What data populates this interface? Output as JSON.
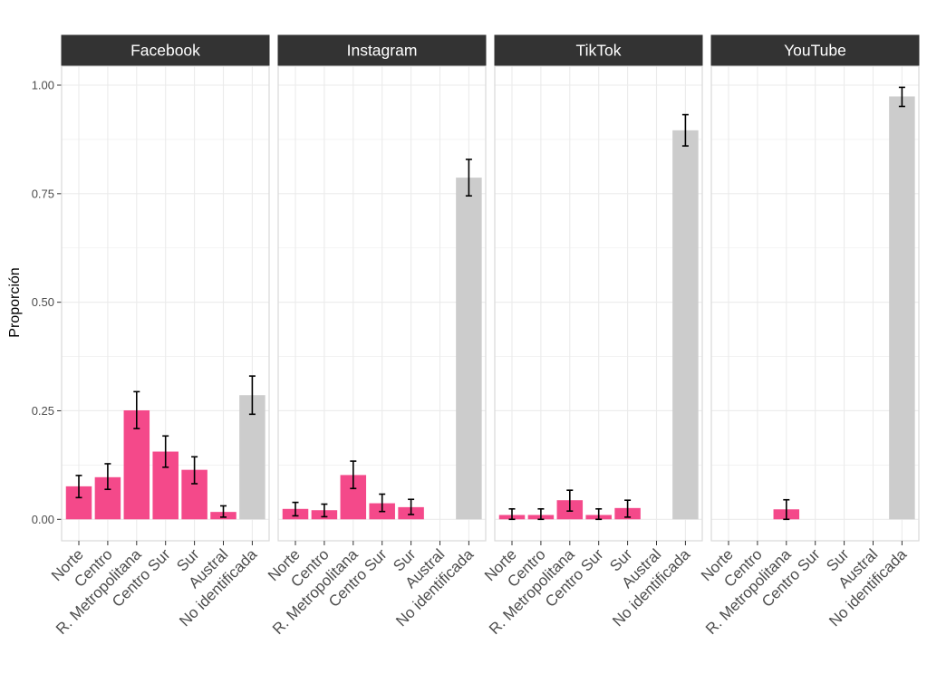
{
  "chart_data": {
    "type": "bar",
    "title": "",
    "xlabel": "",
    "ylabel": "Proporción",
    "ylim": [
      -0.05,
      1.05
    ],
    "yticks": [
      0.0,
      0.25,
      0.5,
      0.75,
      1.0
    ],
    "ytick_labels": [
      "0.00",
      "0.25",
      "0.50",
      "0.75",
      "1.00"
    ],
    "grid": true,
    "legend": "none",
    "colors": {
      "identified": "#F4498A",
      "unidentified": "#CCCCCC",
      "strip_bg": "#333333",
      "grid": "#EBEBEB",
      "panel_border": "#D9D9D9"
    },
    "categories": [
      "Norte",
      "Centro",
      "R. Metropolitana",
      "Centro Sur",
      "Sur",
      "Austral",
      "No identificada"
    ],
    "facets": [
      {
        "name": "Facebook",
        "values": [
          0.076,
          0.097,
          0.251,
          0.156,
          0.114,
          0.017,
          0.286
        ],
        "err_low": [
          0.05,
          0.069,
          0.209,
          0.12,
          0.082,
          0.005,
          0.242
        ],
        "err_high": [
          0.101,
          0.128,
          0.294,
          0.192,
          0.144,
          0.031,
          0.33
        ]
      },
      {
        "name": "Instagram",
        "values": [
          0.024,
          0.021,
          0.102,
          0.037,
          0.028,
          null,
          0.787
        ],
        "err_low": [
          0.008,
          0.006,
          0.071,
          0.018,
          0.011,
          null,
          0.745
        ],
        "err_high": [
          0.039,
          0.035,
          0.134,
          0.058,
          0.046,
          null,
          0.829
        ]
      },
      {
        "name": "TikTok",
        "values": [
          0.01,
          0.01,
          0.044,
          0.01,
          0.026,
          null,
          0.896
        ],
        "err_low": [
          0.0,
          0.0,
          0.019,
          0.0,
          0.005,
          null,
          0.86
        ],
        "err_high": [
          0.024,
          0.024,
          0.067,
          0.024,
          0.044,
          null,
          0.932
        ]
      },
      {
        "name": "YouTube",
        "values": [
          null,
          null,
          0.023,
          null,
          null,
          null,
          0.974
        ],
        "err_low": [
          null,
          null,
          0.0,
          null,
          null,
          null,
          0.951
        ],
        "err_high": [
          null,
          null,
          0.045,
          null,
          null,
          null,
          0.995
        ]
      }
    ]
  }
}
